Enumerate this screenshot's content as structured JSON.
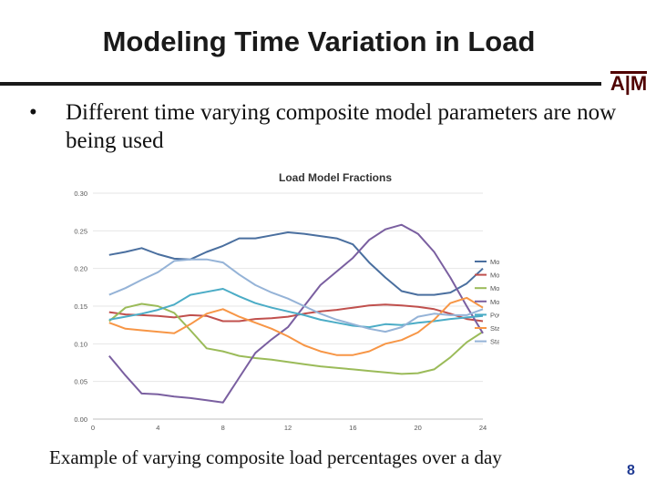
{
  "slide": {
    "title": "Modeling Time Variation in Load",
    "bullet_dot": "•",
    "bullet": "Different time varying composite model parameters are now being used",
    "caption": "Example of varying composite load percentages over a day",
    "page_number": "8",
    "logo_text": "A|M",
    "accent_color": "#500000",
    "page_number_color": "#1f3a93"
  },
  "chart_data": {
    "type": "line",
    "title": "Load Model Fractions",
    "xlabel": "",
    "ylabel": "",
    "x_ticks": [
      0,
      4,
      8,
      12,
      16,
      20,
      24
    ],
    "y_ticks": [
      "0.00",
      "0.05",
      "0.10",
      "0.15",
      "0.20",
      "0.25",
      "0.30"
    ],
    "xlim": [
      0,
      24
    ],
    "ylim": [
      0,
      0.3
    ],
    "legend_position": "right",
    "x": [
      1,
      2,
      3,
      4,
      5,
      6,
      7,
      8,
      9,
      10,
      11,
      12,
      13,
      14,
      15,
      16,
      17,
      18,
      19,
      20,
      21,
      22,
      23,
      24
    ],
    "series": [
      {
        "name": "Motor A",
        "color": "#4a6f9f",
        "values": [
          0.218,
          0.222,
          0.227,
          0.219,
          0.213,
          0.212,
          0.222,
          0.23,
          0.24,
          0.24,
          0.244,
          0.248,
          0.246,
          0.243,
          0.24,
          0.232,
          0.208,
          0.188,
          0.17,
          0.165,
          0.165,
          0.168,
          0.18,
          0.2
        ]
      },
      {
        "name": "Motor B",
        "color": "#c0504d",
        "values": [
          0.142,
          0.139,
          0.138,
          0.137,
          0.135,
          0.138,
          0.137,
          0.13,
          0.13,
          0.133,
          0.134,
          0.136,
          0.14,
          0.143,
          0.145,
          0.148,
          0.151,
          0.152,
          0.151,
          0.149,
          0.146,
          0.14,
          0.133,
          0.13
        ]
      },
      {
        "name": "Motor C",
        "color": "#9bbb59",
        "values": [
          0.13,
          0.148,
          0.153,
          0.15,
          0.141,
          0.118,
          0.094,
          0.09,
          0.084,
          0.081,
          0.079,
          0.076,
          0.073,
          0.07,
          0.068,
          0.066,
          0.064,
          0.062,
          0.06,
          0.061,
          0.066,
          0.082,
          0.102,
          0.116
        ]
      },
      {
        "name": "Motor D",
        "color": "#7a5fa0",
        "values": [
          0.084,
          0.058,
          0.034,
          0.033,
          0.03,
          0.028,
          0.025,
          0.022,
          0.055,
          0.088,
          0.106,
          0.122,
          0.15,
          0.178,
          0.196,
          0.214,
          0.238,
          0.252,
          0.258,
          0.246,
          0.222,
          0.188,
          0.15,
          0.114
        ]
      },
      {
        "name": "Power Electronic",
        "color": "#4bacc6",
        "values": [
          0.132,
          0.136,
          0.14,
          0.145,
          0.152,
          0.165,
          0.169,
          0.173,
          0.163,
          0.154,
          0.148,
          0.143,
          0.138,
          0.132,
          0.128,
          0.124,
          0.122,
          0.126,
          0.125,
          0.128,
          0.13,
          0.133,
          0.135,
          0.137
        ]
      },
      {
        "name": "Static P Resistive",
        "color": "#f79646",
        "values": [
          0.128,
          0.12,
          0.118,
          0.116,
          0.114,
          0.126,
          0.14,
          0.146,
          0.136,
          0.128,
          0.12,
          0.11,
          0.098,
          0.09,
          0.085,
          0.085,
          0.09,
          0.1,
          0.105,
          0.115,
          0.132,
          0.154,
          0.161,
          0.148
        ]
      },
      {
        "name": "Static P Current",
        "color": "#95b3d7",
        "values": [
          0.165,
          0.174,
          0.185,
          0.195,
          0.21,
          0.212,
          0.212,
          0.208,
          0.192,
          0.178,
          0.168,
          0.16,
          0.15,
          0.14,
          0.132,
          0.126,
          0.12,
          0.116,
          0.122,
          0.136,
          0.14,
          0.138,
          0.138,
          0.146
        ]
      }
    ]
  }
}
